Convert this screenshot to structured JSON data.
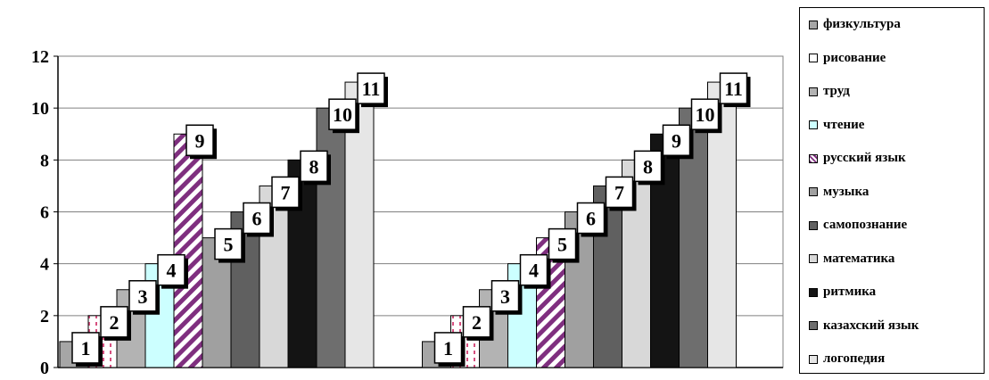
{
  "chart_data": {
    "type": "bar",
    "ylim": [
      0,
      12
    ],
    "yticks": [
      "0",
      "2",
      "4",
      "6",
      "8",
      "10",
      "12"
    ],
    "grid": true,
    "legend_placement": "right",
    "series": [
      {
        "name": "физкультура",
        "color": "#a6a6a6",
        "pattern": "solid"
      },
      {
        "name": "рисование",
        "color": "#ffffff",
        "pattern": "dashed-pink"
      },
      {
        "name": "труд",
        "color": "#b3b3b3",
        "pattern": "solid"
      },
      {
        "name": "чтение",
        "color": "#ccffff",
        "pattern": "solid"
      },
      {
        "name": "русский язык",
        "color": "#7f2f7f",
        "pattern": "diagonal-stripes"
      },
      {
        "name": "музыка",
        "color": "#a0a0a0",
        "pattern": "solid"
      },
      {
        "name": "самопознание",
        "color": "#606060",
        "pattern": "solid"
      },
      {
        "name": "математика",
        "color": "#d8d8d8",
        "pattern": "solid"
      },
      {
        "name": "ритмика",
        "color": "#141414",
        "pattern": "solid"
      },
      {
        "name": "казахский язык",
        "color": "#6e6e6e",
        "pattern": "solid"
      },
      {
        "name": "логопедия",
        "color": "#e6e6e6",
        "pattern": "solid"
      }
    ],
    "groups": [
      {
        "values": [
          1,
          2,
          3,
          4,
          9,
          5,
          6,
          7,
          8,
          10,
          11
        ],
        "labels": [
          "1",
          "2",
          "3",
          "4",
          "9",
          "5",
          "6",
          "7",
          "8",
          "10",
          "11"
        ]
      },
      {
        "values": [
          1,
          2,
          3,
          4,
          5,
          6,
          7,
          8,
          9,
          10,
          11
        ],
        "labels": [
          "1",
          "2",
          "3",
          "4",
          "5",
          "6",
          "7",
          "8",
          "9",
          "10",
          "11"
        ]
      }
    ]
  }
}
